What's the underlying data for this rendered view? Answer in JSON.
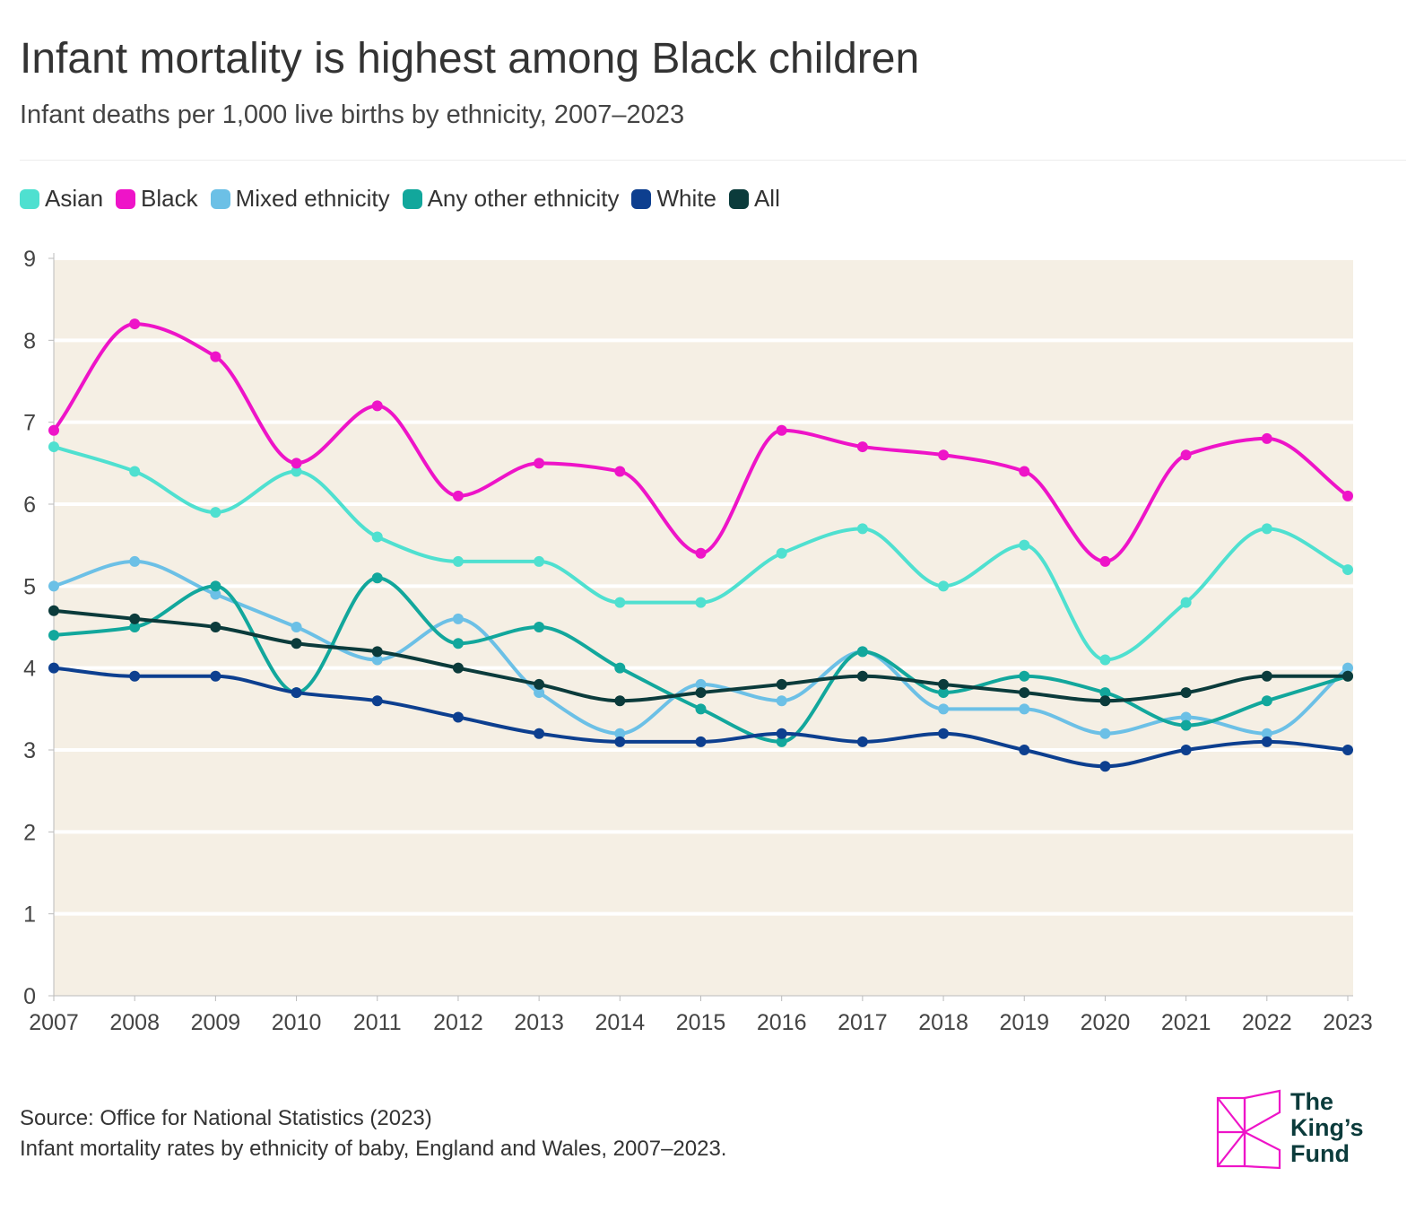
{
  "header": {
    "title": "Infant mortality is highest among Black children",
    "subtitle": "Infant deaths per 1,000 live births by ethnicity, 2007–2023"
  },
  "footer": {
    "source_line1": "Source: Office for National Statistics (2023)",
    "source_line2": "Infant mortality rates by ethnicity of baby, England and Wales, 2007–2023.",
    "logo_line1": "The",
    "logo_line2": "King’s",
    "logo_line3": "Fund"
  },
  "chart_data": {
    "type": "line",
    "title": "Infant mortality is highest among Black children",
    "subtitle": "Infant deaths per 1,000 live births by ethnicity, 2007–2023",
    "xlabel": "",
    "ylabel": "",
    "x": [
      2007,
      2008,
      2009,
      2010,
      2011,
      2012,
      2013,
      2014,
      2015,
      2016,
      2017,
      2018,
      2019,
      2020,
      2021,
      2022,
      2023
    ],
    "ylim": [
      0,
      9
    ],
    "yticks": [
      0,
      1,
      2,
      3,
      4,
      5,
      6,
      7,
      8,
      9
    ],
    "grid": true,
    "legend_position": "top-left",
    "background": "#f5efe4",
    "series": [
      {
        "name": "Asian",
        "color": "#4fe0d0",
        "values": [
          6.7,
          6.4,
          5.9,
          6.4,
          5.6,
          5.3,
          5.3,
          4.8,
          4.8,
          5.4,
          5.7,
          5.0,
          5.5,
          4.1,
          4.8,
          5.7,
          5.2
        ]
      },
      {
        "name": "Black",
        "color": "#ee14c8",
        "values": [
          6.9,
          8.2,
          7.8,
          6.5,
          7.2,
          6.1,
          6.5,
          6.4,
          5.4,
          6.9,
          6.7,
          6.6,
          6.4,
          5.3,
          6.6,
          6.8,
          6.1
        ]
      },
      {
        "name": "Mixed ethnicity",
        "color": "#6cc0e6",
        "values": [
          5.0,
          5.3,
          4.9,
          4.5,
          4.1,
          4.6,
          3.7,
          3.2,
          3.8,
          3.6,
          4.2,
          3.5,
          3.5,
          3.2,
          3.4,
          3.2,
          4.0
        ]
      },
      {
        "name": "Any other ethnicity",
        "color": "#12a79c",
        "values": [
          4.4,
          4.5,
          5.0,
          3.7,
          5.1,
          4.3,
          4.5,
          4.0,
          3.5,
          3.1,
          4.2,
          3.7,
          3.9,
          3.7,
          3.3,
          3.6,
          3.9
        ]
      },
      {
        "name": "White",
        "color": "#0d3f8f",
        "values": [
          4.0,
          3.9,
          3.9,
          3.7,
          3.6,
          3.4,
          3.2,
          3.1,
          3.1,
          3.2,
          3.1,
          3.2,
          3.0,
          2.8,
          3.0,
          3.1,
          3.0
        ]
      },
      {
        "name": "All",
        "color": "#0b3b3b",
        "values": [
          4.7,
          4.6,
          4.5,
          4.3,
          4.2,
          4.0,
          3.8,
          3.6,
          3.7,
          3.8,
          3.9,
          3.8,
          3.7,
          3.6,
          3.7,
          3.9,
          3.9
        ]
      }
    ]
  },
  "logo_color": "#ee14c8"
}
